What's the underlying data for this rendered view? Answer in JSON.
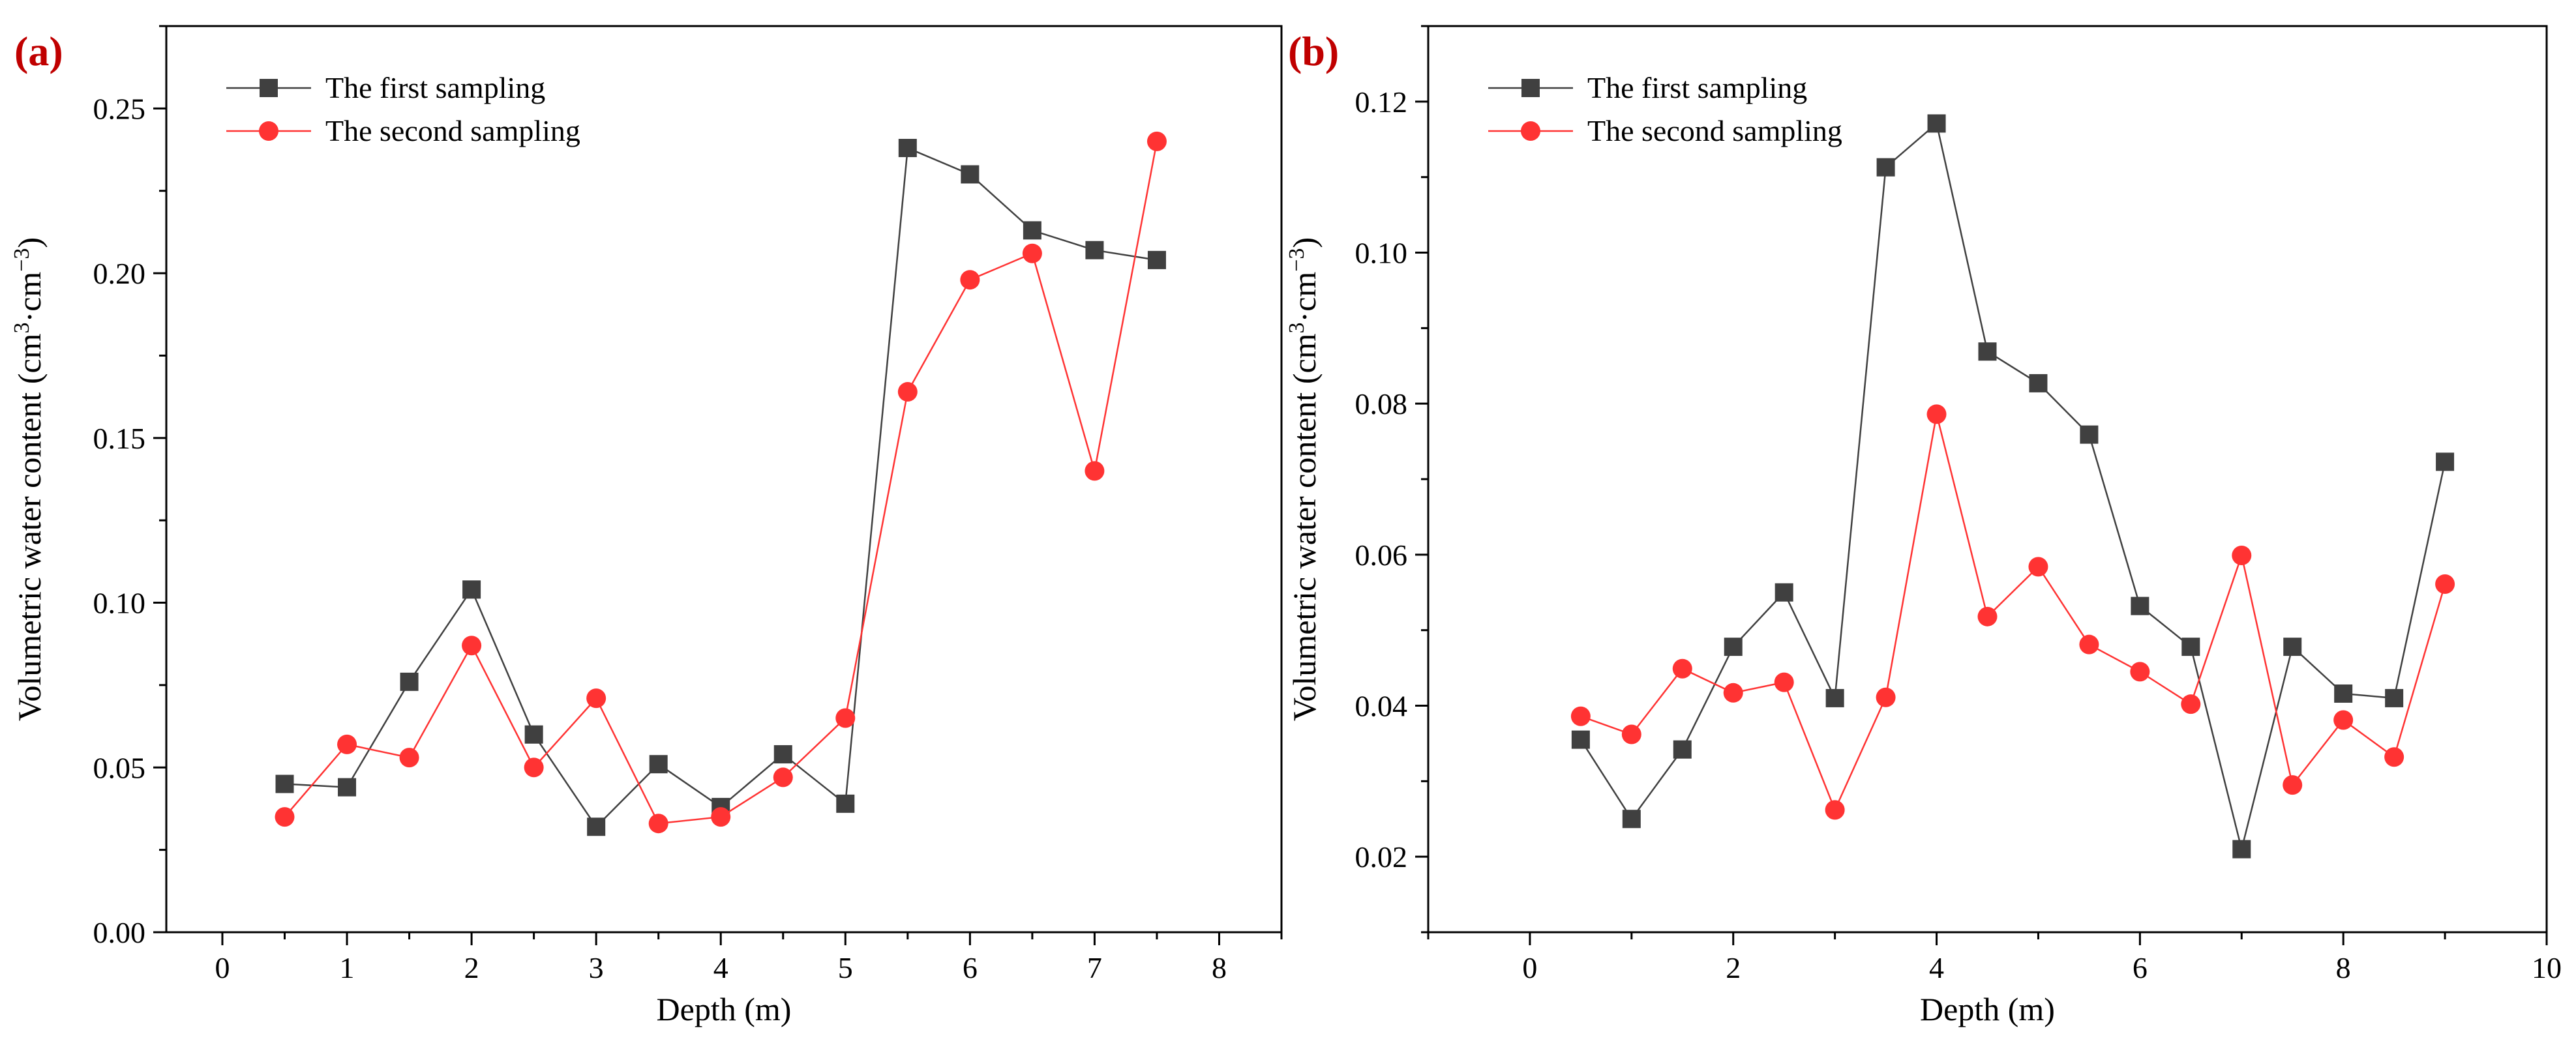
{
  "colors": {
    "series1": "#404040",
    "series2": "#ff3333",
    "axis": "#000000",
    "panel_label": "#c00000"
  },
  "chart_data": [
    {
      "type": "line",
      "panel_label": "(a)",
      "xlabel": "Depth (m)",
      "ylabel_main": "Volumetric water content (cm",
      "ylabel_sup1": "3",
      "ylabel_mid": "·cm",
      "ylabel_sup2": "−3",
      "ylabel_end": ")",
      "xlim": [
        -0.45,
        8.5
      ],
      "ylim": [
        0,
        0.275
      ],
      "xticks": [
        0,
        1,
        2,
        3,
        4,
        5,
        6,
        7,
        8
      ],
      "xtick_labels": [
        "0",
        "1",
        "2",
        "3",
        "4",
        "5",
        "6",
        "7",
        "8"
      ],
      "yticks": [
        0,
        0.05,
        0.1,
        0.15,
        0.2,
        0.25
      ],
      "ytick_labels": [
        "0.00",
        "0.05",
        "0.10",
        "0.15",
        "0.20",
        "0.25"
      ],
      "legend_position": "top-left",
      "series": [
        {
          "name": "The first sampling",
          "marker": "square",
          "x": [
            0.5,
            1,
            1.5,
            2,
            2.5,
            3,
            3.5,
            4,
            4.5,
            5,
            5.5,
            6,
            6.5,
            7,
            7.5
          ],
          "values": [
            0.045,
            0.044,
            0.076,
            0.104,
            0.06,
            0.032,
            0.051,
            0.038,
            0.054,
            0.039,
            0.238,
            0.23,
            0.213,
            0.207,
            0.204
          ]
        },
        {
          "name": "The second sampling",
          "marker": "circle",
          "x": [
            0.5,
            1,
            1.5,
            2,
            2.5,
            3,
            3.5,
            4,
            4.5,
            5,
            5.5,
            6,
            6.5,
            7,
            7.5
          ],
          "values": [
            0.035,
            0.057,
            0.053,
            0.087,
            0.05,
            0.071,
            0.033,
            0.035,
            0.047,
            0.065,
            0.164,
            0.198,
            0.206,
            0.14,
            0.24
          ]
        }
      ]
    },
    {
      "type": "line",
      "panel_label": "(b)",
      "xlabel": "Depth (m)",
      "ylabel_main": "Volumetric water content (cm",
      "ylabel_sup1": "3",
      "ylabel_mid": "·cm",
      "ylabel_sup2": "−3",
      "ylabel_end": ")",
      "xlim": [
        -1,
        10
      ],
      "ylim": [
        0.01,
        0.13
      ],
      "xticks": [
        0,
        2,
        4,
        6,
        8,
        10
      ],
      "xtick_labels": [
        "0",
        "2",
        "4",
        "6",
        "8",
        "10"
      ],
      "yticks": [
        0.02,
        0.04,
        0.06,
        0.08,
        0.1,
        0.12
      ],
      "ytick_labels": [
        "0.02",
        "0.04",
        "0.06",
        "0.08",
        "0.10",
        "0.12"
      ],
      "legend_position": "top-left",
      "series": [
        {
          "name": "The first sampling",
          "marker": "square",
          "x": [
            0.5,
            1,
            1.5,
            2,
            2.5,
            3,
            3.5,
            4,
            4.5,
            5,
            5.5,
            6,
            6.5,
            7,
            7.5,
            8,
            8.5,
            9
          ],
          "values": [
            0.0355,
            0.025,
            0.0342,
            0.0478,
            0.055,
            0.041,
            0.1113,
            0.1171,
            0.0869,
            0.0827,
            0.0759,
            0.0532,
            0.0478,
            0.021,
            0.0478,
            0.0416,
            0.041,
            0.0723
          ]
        },
        {
          "name": "The second sampling",
          "marker": "circle",
          "x": [
            0.5,
            1,
            1.5,
            2,
            2.5,
            3,
            3.5,
            4,
            4.5,
            5,
            5.5,
            6,
            6.5,
            7,
            7.5,
            8,
            8.5,
            9
          ],
          "values": [
            0.0386,
            0.0362,
            0.0449,
            0.0417,
            0.0431,
            0.0262,
            0.0411,
            0.0786,
            0.0518,
            0.0584,
            0.0481,
            0.0445,
            0.0402,
            0.0599,
            0.0295,
            0.0381,
            0.0332,
            0.0561
          ]
        }
      ]
    }
  ]
}
